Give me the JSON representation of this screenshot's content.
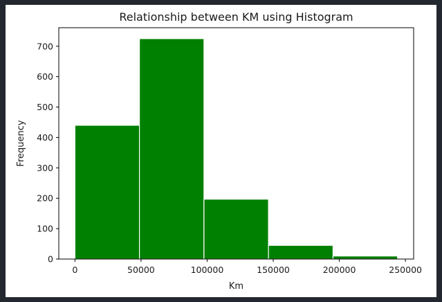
{
  "chart_data": {
    "type": "bar",
    "title": "Relationship between KM using Histogram",
    "xlabel": "Km",
    "ylabel": "Frequency",
    "bin_edges": [
      0,
      48800,
      97600,
      146400,
      195200,
      244000
    ],
    "values": [
      440,
      725,
      197,
      45,
      10
    ],
    "xlim": [
      -12200,
      256200
    ],
    "ylim": [
      0,
      761
    ],
    "x_ticks": [
      0,
      50000,
      100000,
      150000,
      200000,
      250000
    ],
    "x_tick_labels": [
      "0",
      "50000",
      "100000",
      "150000",
      "200000",
      "250000"
    ],
    "y_ticks": [
      0,
      100,
      200,
      300,
      400,
      500,
      600,
      700
    ],
    "y_tick_labels": [
      "0",
      "100",
      "200",
      "300",
      "400",
      "500",
      "600",
      "700"
    ],
    "bar_color": "#008000",
    "edge_color": "#ffffff",
    "grid": false,
    "legend": "none"
  }
}
